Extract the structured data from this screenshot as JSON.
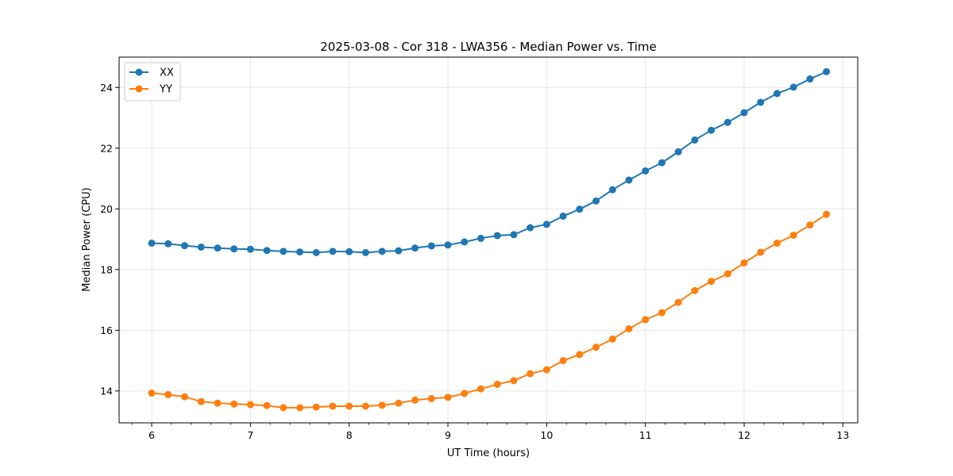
{
  "chart_data": {
    "type": "line",
    "title": "2025-03-08 - Cor 318 - LWA356 - Median Power vs. Time",
    "xlabel": "UT Time (hours)",
    "ylabel": "Median Power (CPU)",
    "xlim": [
      5.67,
      13.15
    ],
    "ylim": [
      12.95,
      25.0
    ],
    "xticks": [
      6,
      7,
      8,
      9,
      10,
      11,
      12,
      13
    ],
    "yticks": [
      14,
      16,
      18,
      20,
      22,
      24
    ],
    "grid": true,
    "legend": "top-left",
    "x": [
      6.0,
      6.1667,
      6.3333,
      6.5,
      6.6667,
      6.8333,
      7.0,
      7.1667,
      7.3333,
      7.5,
      7.6667,
      7.8333,
      8.0,
      8.1667,
      8.3333,
      8.5,
      8.6667,
      8.8333,
      9.0,
      9.1667,
      9.3333,
      9.5,
      9.6667,
      9.8333,
      10.0,
      10.1667,
      10.3333,
      10.5,
      10.6667,
      10.8333,
      11.0,
      11.1667,
      11.3333,
      11.5,
      11.6667,
      11.8333,
      12.0,
      12.1667,
      12.3333,
      12.5,
      12.6667,
      12.8333
    ],
    "series": [
      {
        "name": "XX",
        "color": "#1f77b4",
        "values": [
          18.87,
          18.85,
          18.79,
          18.74,
          18.71,
          18.68,
          18.67,
          18.63,
          18.6,
          18.58,
          18.56,
          18.6,
          18.59,
          18.56,
          18.6,
          18.62,
          18.71,
          18.78,
          18.81,
          18.91,
          19.03,
          19.12,
          19.15,
          19.38,
          19.49,
          19.76,
          19.99,
          20.26,
          20.63,
          20.95,
          21.25,
          21.52,
          21.88,
          22.27,
          22.59,
          22.85,
          23.17,
          23.51,
          23.8,
          24.01,
          24.28,
          24.52
        ]
      },
      {
        "name": "YY",
        "color": "#ff7f0e",
        "values": [
          13.93,
          13.88,
          13.81,
          13.65,
          13.6,
          13.57,
          13.55,
          13.52,
          13.45,
          13.45,
          13.47,
          13.5,
          13.5,
          13.5,
          13.53,
          13.6,
          13.7,
          13.75,
          13.79,
          13.92,
          14.07,
          14.22,
          14.34,
          14.57,
          14.7,
          15.0,
          15.2,
          15.44,
          15.71,
          16.05,
          16.35,
          16.58,
          16.92,
          17.31,
          17.61,
          17.86,
          18.22,
          18.57,
          18.87,
          19.13,
          19.47,
          19.82
        ]
      }
    ]
  }
}
